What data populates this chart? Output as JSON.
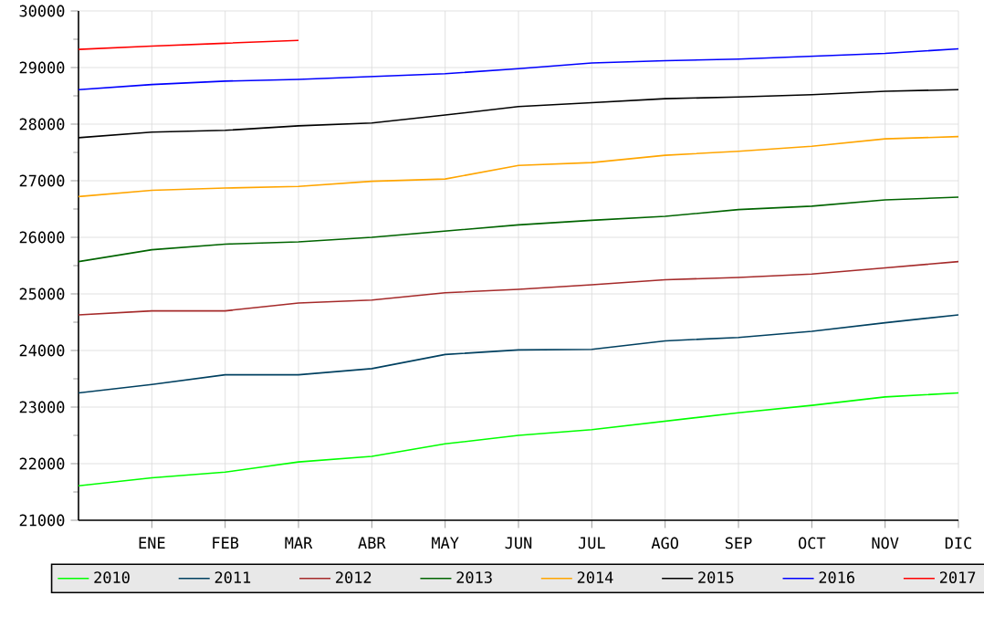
{
  "chart_data": {
    "type": "line",
    "categories": [
      null,
      "ENE",
      "FEB",
      "MAR",
      "ABR",
      "MAY",
      "JUN",
      "JUL",
      "AGO",
      "SEP",
      "OCT",
      "NOV",
      "DIC"
    ],
    "series": [
      {
        "name": "2010",
        "color": "#00ff00",
        "values": [
          21610,
          21750,
          21850,
          22030,
          22130,
          22350,
          22500,
          22600,
          22750,
          22900,
          23030,
          23180,
          23250
        ]
      },
      {
        "name": "2011",
        "color": "#004060",
        "values": [
          23250,
          23400,
          23570,
          23570,
          23680,
          23930,
          24010,
          24020,
          24170,
          24230,
          24340,
          24490,
          24630
        ]
      },
      {
        "name": "2012",
        "color": "#a52a2a",
        "values": [
          24630,
          24700,
          24700,
          24840,
          24890,
          25020,
          25080,
          25160,
          25250,
          25290,
          25350,
          25460,
          25570
        ]
      },
      {
        "name": "2013",
        "color": "#006400",
        "values": [
          25570,
          25780,
          25880,
          25920,
          26000,
          26110,
          26220,
          26300,
          26370,
          26490,
          26550,
          26660,
          26710
        ]
      },
      {
        "name": "2014",
        "color": "#ffa500",
        "values": [
          26720,
          26830,
          26870,
          26900,
          26990,
          27030,
          27270,
          27320,
          27450,
          27520,
          27610,
          27740,
          27780
        ]
      },
      {
        "name": "2015",
        "color": "#000000",
        "values": [
          27760,
          27860,
          27890,
          27970,
          28020,
          28160,
          28310,
          28380,
          28450,
          28480,
          28520,
          28580,
          28610
        ]
      },
      {
        "name": "2016",
        "color": "#0000ff",
        "values": [
          28610,
          28700,
          28760,
          28790,
          28840,
          28890,
          28980,
          29080,
          29120,
          29150,
          29200,
          29250,
          29330
        ]
      },
      {
        "name": "2017",
        "color": "#ff0000",
        "values": [
          29320,
          29380,
          29430,
          29480,
          null,
          null,
          null,
          null,
          null,
          null,
          null,
          null,
          null
        ]
      }
    ],
    "ylim": [
      21000,
      30000
    ],
    "yticks": [
      21000,
      22000,
      23000,
      24000,
      25000,
      26000,
      27000,
      28000,
      29000,
      30000
    ],
    "grid": true,
    "legend": "bottom",
    "marker": "none",
    "line_style": "solid"
  }
}
